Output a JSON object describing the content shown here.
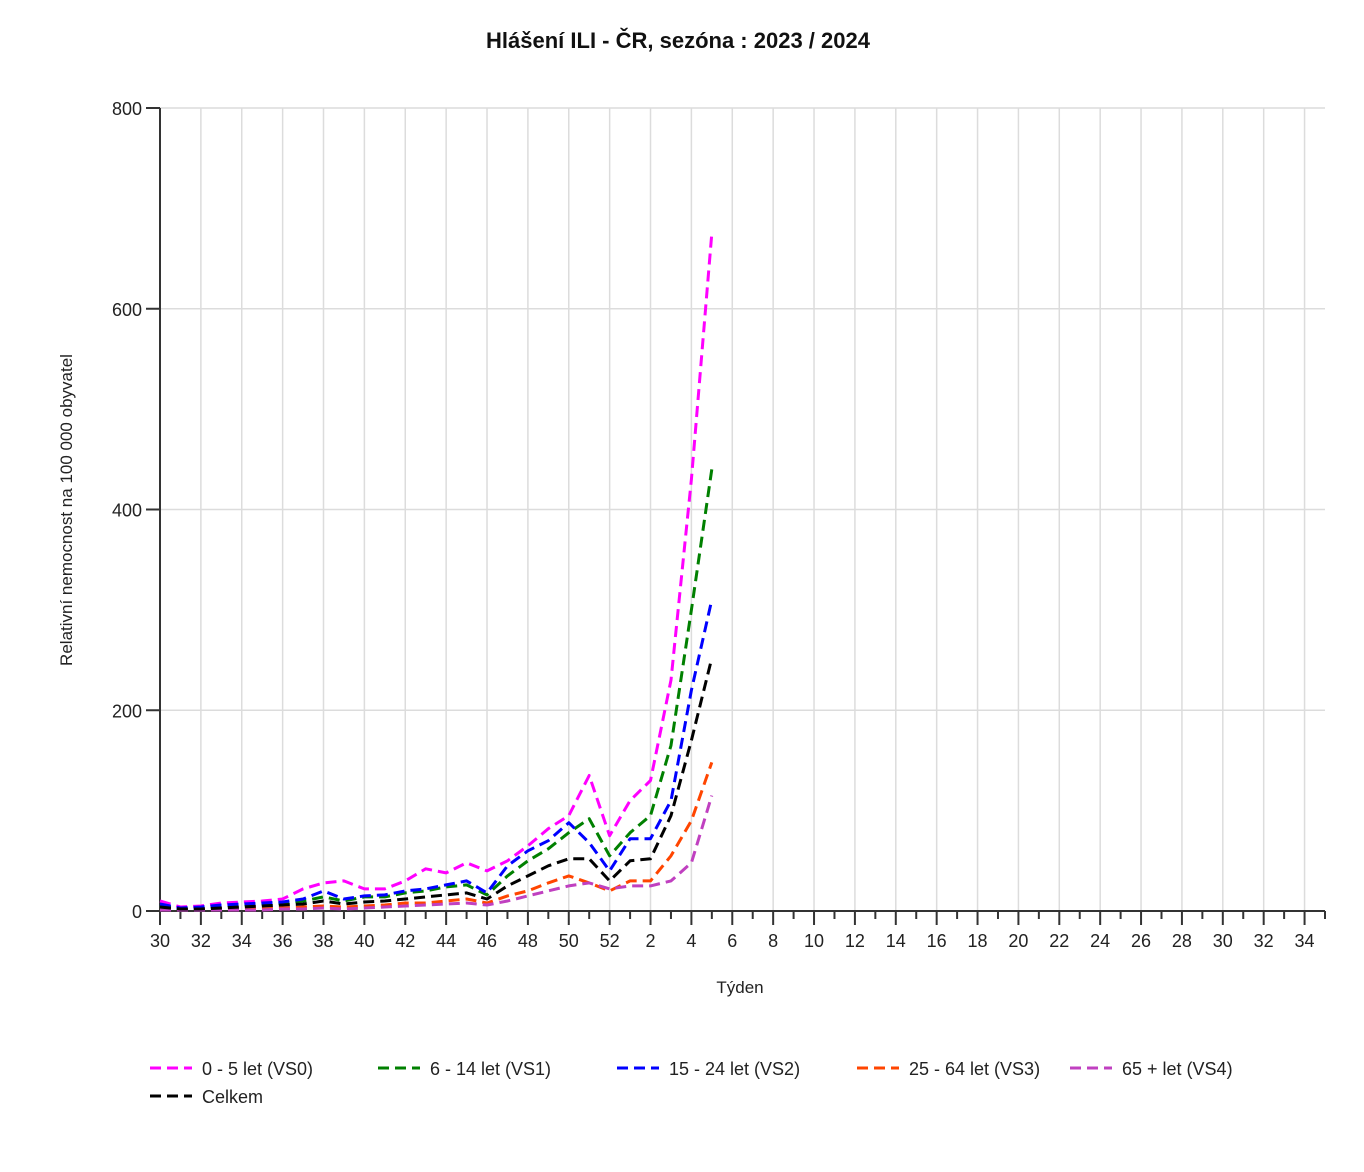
{
  "chart_data": {
    "type": "line",
    "title": "Hlášení ILI - ČR, sezóna : 2023 / 2024",
    "xlabel": "Týden",
    "ylabel": "Relativní nemocnost na 100 000 obyvatel",
    "ylim": [
      0,
      800
    ],
    "yticks": [
      0,
      200,
      400,
      600,
      800
    ],
    "grid": true,
    "line_style": "dashed",
    "legend_position": "bottom",
    "x_ticks": [
      "30",
      "31",
      "32",
      "33",
      "34",
      "35",
      "36",
      "37",
      "38",
      "39",
      "40",
      "41",
      "42",
      "43",
      "44",
      "45",
      "46",
      "47",
      "48",
      "49",
      "50",
      "51",
      "52",
      "1",
      "2",
      "3",
      "4",
      "5",
      "6",
      "7",
      "8",
      "9",
      "10",
      "11",
      "12",
      "13",
      "14",
      "15",
      "16",
      "17",
      "18",
      "19",
      "20",
      "21",
      "22",
      "23",
      "24",
      "25",
      "26",
      "27",
      "28",
      "29",
      "30",
      "31",
      "32",
      "33",
      "34",
      "35"
    ],
    "x_tick_labels": [
      "30",
      "",
      "32",
      "",
      "34",
      "",
      "36",
      "",
      "38",
      "",
      "40",
      "",
      "42",
      "",
      "44",
      "",
      "46",
      "",
      "48",
      "",
      "50",
      "",
      "52",
      "",
      "2",
      "",
      "4",
      "",
      "6",
      "",
      "8",
      "",
      "10",
      "",
      "12",
      "",
      "14",
      "",
      "16",
      "",
      "18",
      "",
      "20",
      "",
      "22",
      "",
      "24",
      "",
      "26",
      "",
      "28",
      "",
      "30",
      "",
      "32",
      "",
      "34",
      ""
    ],
    "x": [
      "30",
      "31",
      "32",
      "33",
      "34",
      "35",
      "36",
      "37",
      "38",
      "39",
      "40",
      "41",
      "42",
      "43",
      "44",
      "45",
      "46",
      "47",
      "48",
      "49",
      "50",
      "51",
      "52",
      "1",
      "2",
      "3",
      "4",
      "5"
    ],
    "series": [
      {
        "name": "0 - 5 let (VS0)",
        "color": "#ff00ff",
        "values": [
          10,
          4,
          5,
          8,
          9,
          10,
          12,
          22,
          28,
          30,
          22,
          22,
          30,
          42,
          38,
          48,
          40,
          50,
          65,
          82,
          95,
          135,
          75,
          110,
          130,
          230,
          430,
          675
        ]
      },
      {
        "name": "6 - 14 let (VS1)",
        "color": "#008000",
        "values": [
          6,
          2,
          3,
          5,
          6,
          7,
          8,
          10,
          14,
          10,
          14,
          14,
          18,
          20,
          24,
          26,
          16,
          35,
          50,
          62,
          78,
          92,
          55,
          78,
          95,
          165,
          300,
          440
        ]
      },
      {
        "name": "15 - 24 let (VS2)",
        "color": "#0000ff",
        "values": [
          7,
          3,
          4,
          6,
          7,
          8,
          9,
          12,
          20,
          12,
          15,
          16,
          20,
          22,
          26,
          30,
          18,
          45,
          60,
          70,
          88,
          68,
          40,
          72,
          72,
          110,
          220,
          310
        ]
      },
      {
        "name": "25 - 64 let (VS3)",
        "color": "#ff4500",
        "values": [
          2,
          1,
          1,
          2,
          2,
          2,
          3,
          4,
          5,
          4,
          5,
          6,
          8,
          8,
          10,
          12,
          8,
          15,
          20,
          28,
          35,
          28,
          20,
          30,
          30,
          55,
          90,
          148
        ]
      },
      {
        "name": "65 + let (VS4)",
        "color": "#c040c0",
        "values": [
          1,
          1,
          1,
          1,
          1,
          1,
          2,
          2,
          3,
          2,
          3,
          4,
          5,
          6,
          7,
          8,
          6,
          10,
          15,
          20,
          25,
          28,
          22,
          25,
          25,
          30,
          48,
          115
        ]
      },
      {
        "name": "Celkem",
        "color": "#000000",
        "values": [
          4,
          2,
          2,
          3,
          4,
          5,
          6,
          7,
          10,
          7,
          9,
          10,
          12,
          14,
          16,
          18,
          12,
          25,
          35,
          45,
          52,
          52,
          30,
          50,
          52,
          95,
          170,
          252
        ]
      }
    ]
  }
}
